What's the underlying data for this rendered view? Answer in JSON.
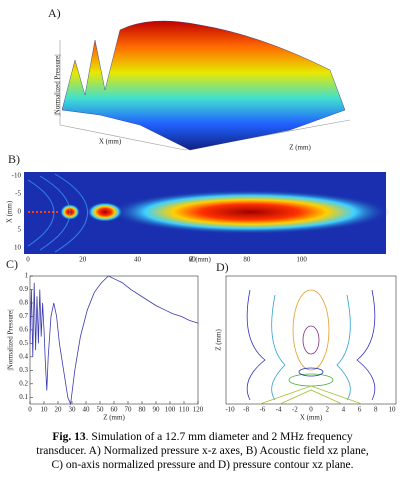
{
  "panel_a": {
    "label": "A)",
    "x_axis": "X (mm)",
    "z_axis": "Z (mm)",
    "y_axis": "|Normalized Pressure|"
  },
  "panel_b": {
    "label": "B)",
    "x_axis": "Z (mm)",
    "y_axis": "X (mm)",
    "x_ticks": [
      "0",
      "20",
      "40",
      "60",
      "80",
      "100"
    ],
    "y_ticks": [
      "-10",
      "-5",
      "0",
      "5",
      "10"
    ]
  },
  "chart_data": {
    "type": "line",
    "label": "C)",
    "xlabel": "Z (mm)",
    "ylabel": "|Normalized Pressure|",
    "x": [
      0,
      1,
      2,
      3,
      4,
      5,
      6,
      7,
      8,
      9,
      10,
      11,
      12,
      13,
      15,
      17,
      19,
      21,
      24,
      27,
      29,
      32,
      36,
      41,
      46,
      51,
      56,
      60,
      66,
      72,
      78,
      84,
      90,
      96,
      102,
      108,
      114,
      120
    ],
    "series": [
      {
        "name": "on-axis pressure",
        "color": "#3b3bb0",
        "values": [
          0.5,
          0.9,
          0.4,
          0.95,
          0.45,
          0.85,
          0.5,
          0.9,
          0.55,
          0.8,
          0.6,
          0.35,
          0.15,
          0.4,
          0.7,
          0.8,
          0.7,
          0.5,
          0.3,
          0.1,
          0.05,
          0.3,
          0.55,
          0.75,
          0.88,
          0.95,
          1.0,
          0.98,
          0.95,
          0.9,
          0.86,
          0.82,
          0.78,
          0.75,
          0.72,
          0.7,
          0.67,
          0.65
        ]
      }
    ],
    "xlim": [
      0,
      120
    ],
    "xticks": [
      0,
      10,
      20,
      30,
      40,
      50,
      60,
      70,
      80,
      90,
      100,
      110,
      120
    ],
    "ylim": [
      0.05,
      1
    ],
    "yticks": [
      0.1,
      0.2,
      0.3,
      0.4,
      0.5,
      0.6,
      0.7,
      0.8,
      0.9,
      1
    ]
  },
  "panel_d": {
    "label": "D)",
    "x_axis": "X (mm)",
    "y_axis": "Z (mm)",
    "x_ticks": [
      "-10",
      "-8",
      "-6",
      "-4",
      "-2",
      "0",
      "2",
      "4",
      "6",
      "8",
      "10"
    ]
  },
  "caption": {
    "label": "Fig. 13",
    "lines": [
      ".  Simulation of a 12.7 mm diameter and 2 MHz frequency",
      "transducer. A) Normalized pressure x-z axes, B) Acoustic field xz plane,",
      "C) on-axis normalized pressure and D) pressure contour xz plane."
    ]
  }
}
